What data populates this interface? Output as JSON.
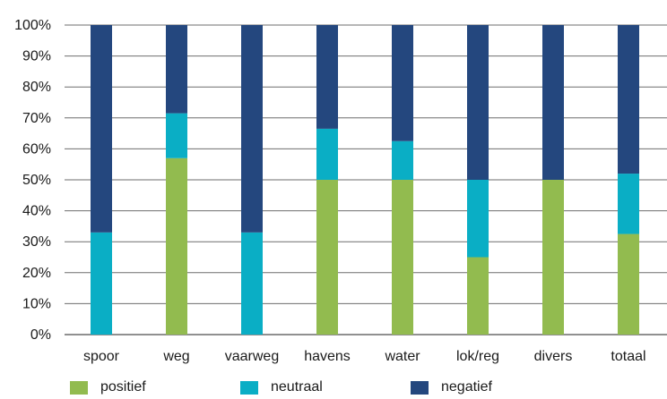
{
  "chart_data": {
    "type": "bar",
    "stacked": true,
    "categories": [
      "spoor",
      "weg",
      "vaarweg",
      "havens",
      "water",
      "lok/reg",
      "divers",
      "totaal"
    ],
    "series": [
      {
        "name": "positief",
        "color": "#92bb4f",
        "values": [
          0,
          57,
          0,
          50,
          50,
          25,
          50,
          32.5
        ]
      },
      {
        "name": "neutraal",
        "color": "#0aaec5",
        "values": [
          33,
          14.5,
          33,
          16.5,
          12.5,
          25,
          0,
          19.5
        ]
      },
      {
        "name": "negatief",
        "color": "#24477e",
        "values": [
          67,
          28.5,
          67,
          33.5,
          37.5,
          50,
          50,
          48
        ]
      }
    ],
    "y_ticks": [
      "0%",
      "10%",
      "20%",
      "30%",
      "40%",
      "50%",
      "60%",
      "70%",
      "80%",
      "90%",
      "100%"
    ],
    "ylim": [
      0,
      100
    ],
    "grid": true,
    "legend_position": "bottom"
  }
}
